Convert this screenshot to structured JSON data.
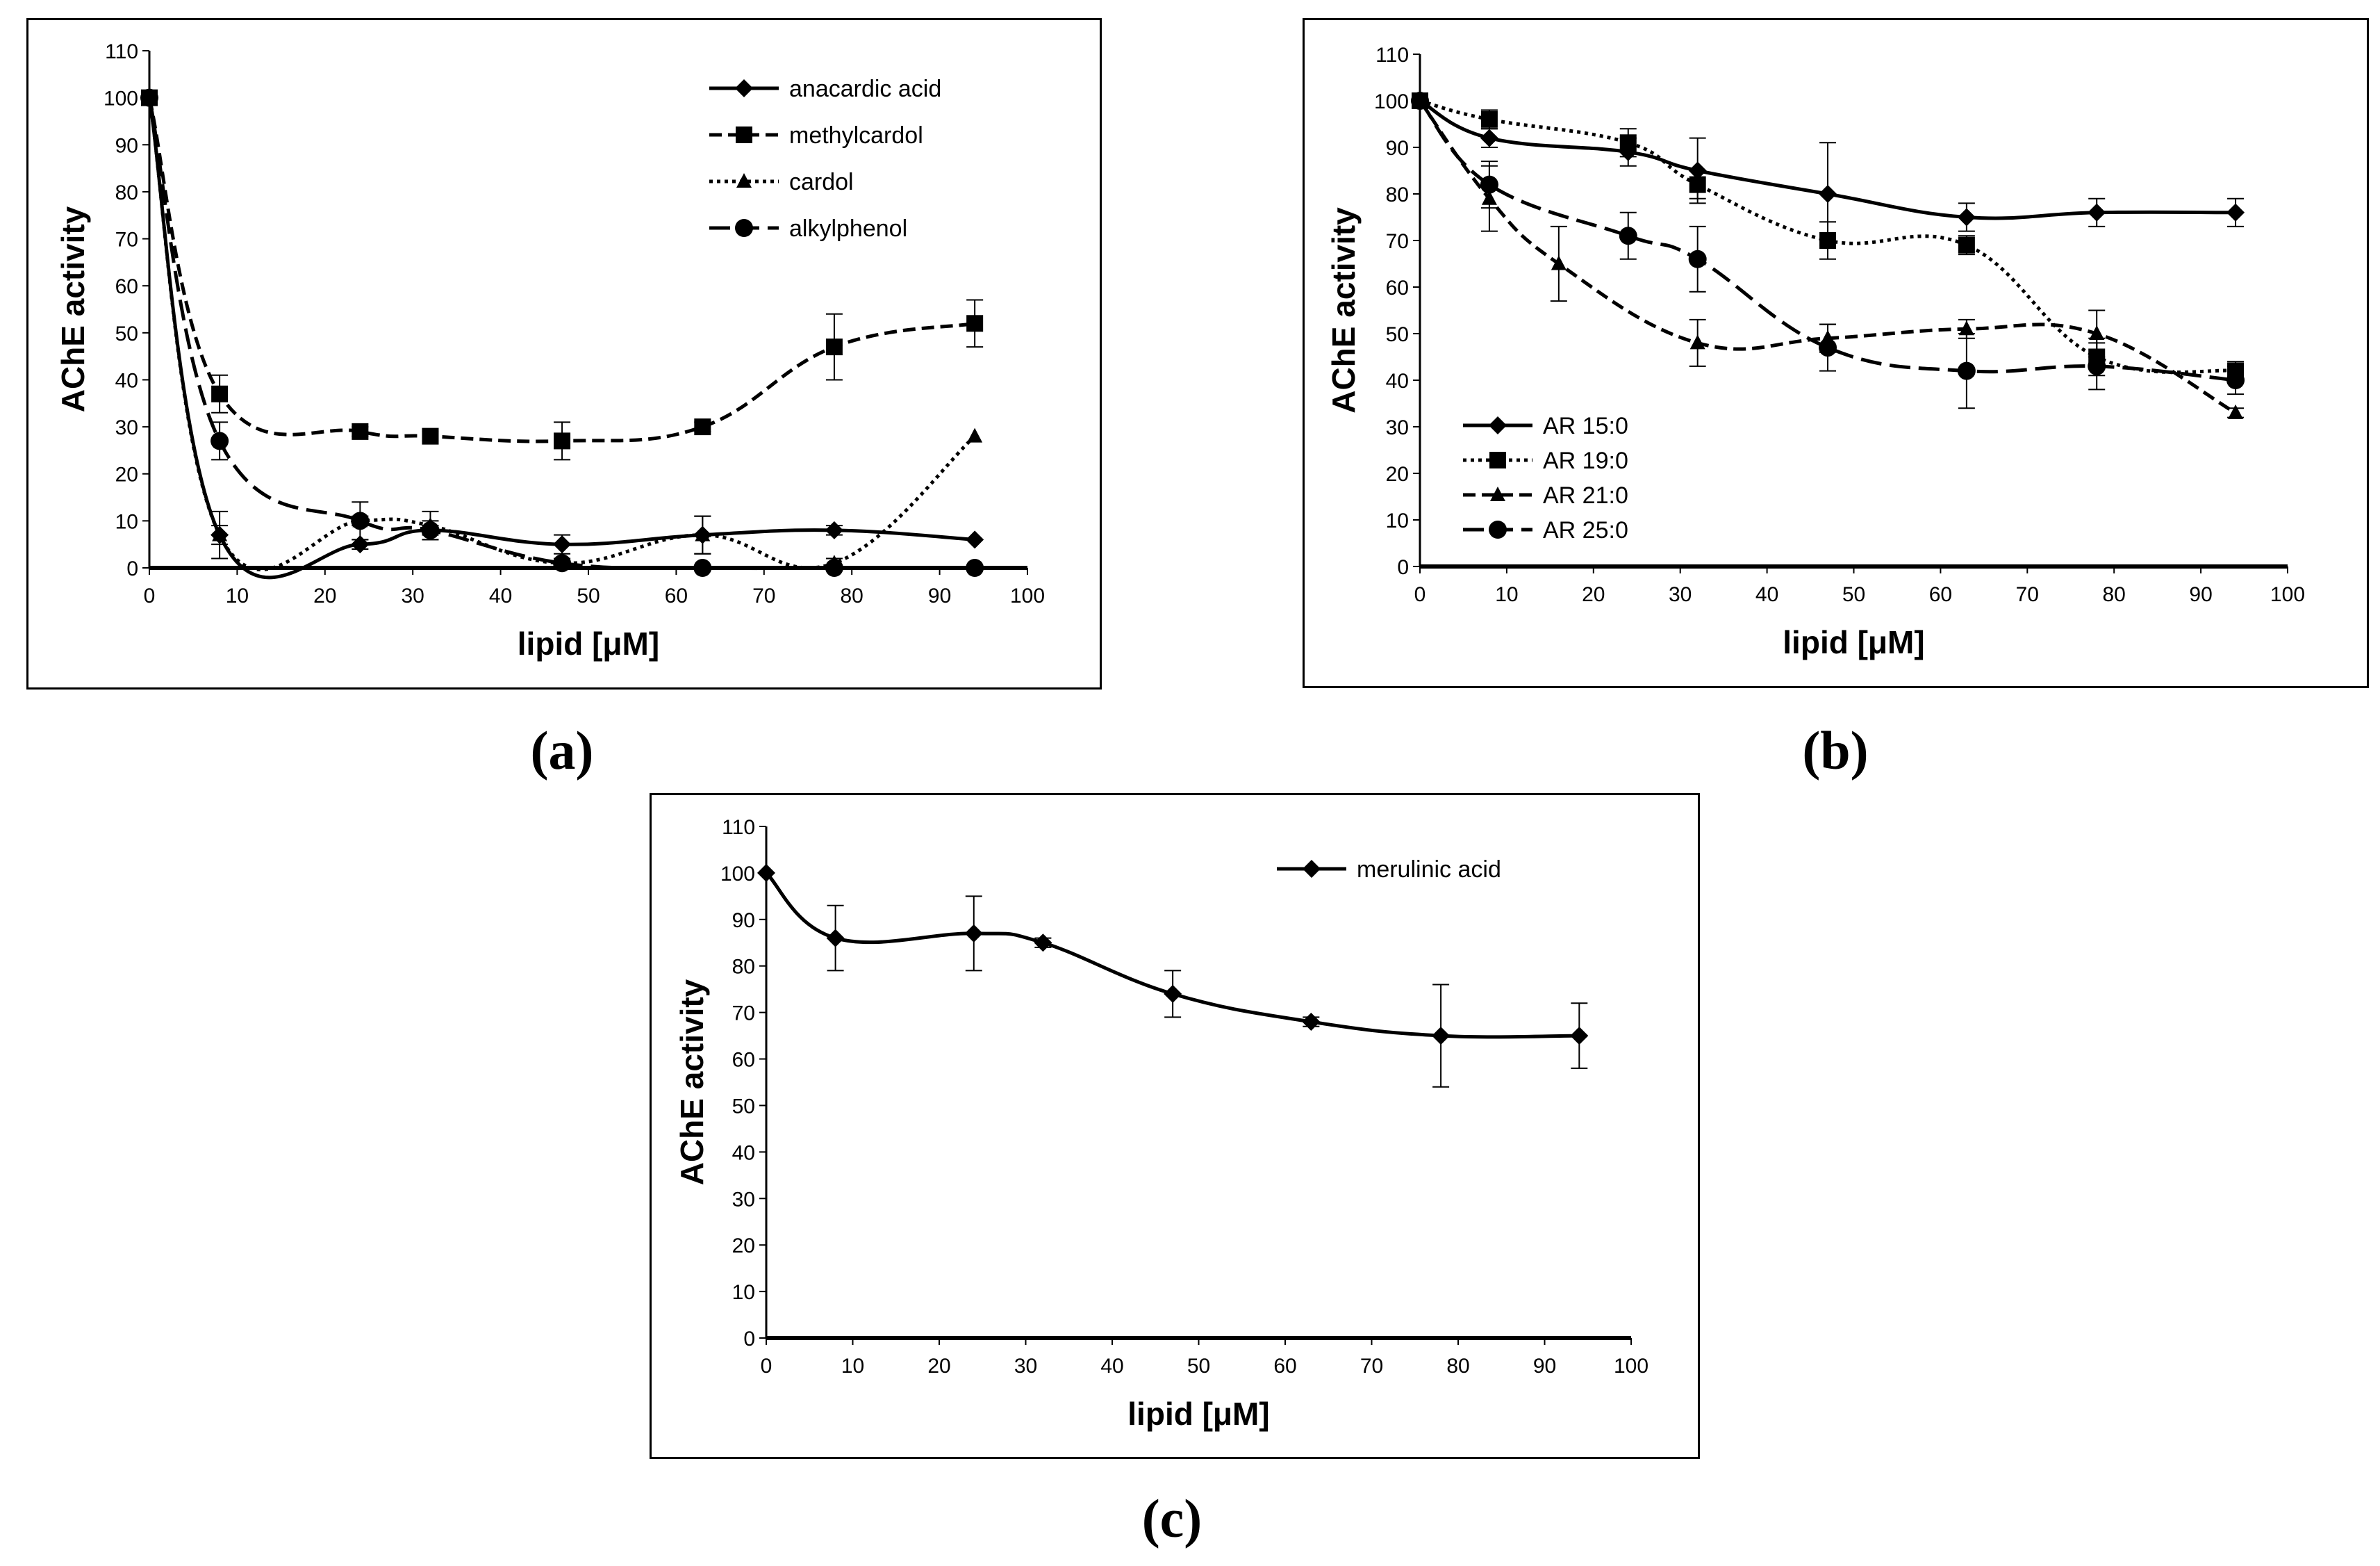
{
  "figure": {
    "captions": [
      "(a)",
      "(b)",
      "(c)"
    ]
  },
  "chart_data": [
    {
      "id": "a",
      "type": "line",
      "caption": "(a)",
      "xlabel": "lipid [μM]",
      "ylabel": "AChE activity",
      "xlim": [
        0,
        100
      ],
      "ylim": [
        0,
        110
      ],
      "xticks": [
        0,
        10,
        20,
        30,
        40,
        50,
        60,
        70,
        80,
        90,
        100
      ],
      "yticks": [
        0,
        10,
        20,
        30,
        40,
        50,
        60,
        70,
        80,
        90,
        100,
        110
      ],
      "legend_position": "top-right",
      "series": [
        {
          "name": "anacardic acid",
          "marker": "diamond",
          "dash": "solid",
          "x": [
            0,
            8,
            24,
            32,
            47,
            63,
            78,
            94
          ],
          "y": [
            100,
            7,
            5,
            8,
            5,
            7,
            8,
            6
          ],
          "err": [
            0,
            2,
            1,
            2,
            2,
            4,
            1,
            0
          ]
        },
        {
          "name": "methylcardol",
          "marker": "square",
          "dash": "dash",
          "x": [
            0,
            8,
            24,
            32,
            47,
            63,
            78,
            94
          ],
          "y": [
            100,
            37,
            29,
            28,
            27,
            30,
            47,
            52
          ],
          "err": [
            0,
            4,
            1,
            1,
            4,
            1,
            7,
            5
          ]
        },
        {
          "name": "cardol",
          "marker": "triangle",
          "dash": "dot",
          "x": [
            0,
            8,
            24,
            32,
            47,
            63,
            78,
            94
          ],
          "y": [
            100,
            7,
            10,
            9,
            1,
            7,
            1,
            28
          ],
          "err": [
            0,
            5,
            4,
            3,
            1,
            4,
            1,
            0
          ]
        },
        {
          "name": "alkylphenol",
          "marker": "circle",
          "dash": "longdash",
          "x": [
            0,
            8,
            24,
            32,
            47,
            63,
            78,
            94
          ],
          "y": [
            100,
            27,
            10,
            8,
            1,
            0,
            0,
            0
          ],
          "err": [
            0,
            4,
            1,
            1,
            0,
            0,
            0,
            0
          ]
        }
      ]
    },
    {
      "id": "b",
      "type": "line",
      "caption": "(b)",
      "xlabel": "lipid [μM]",
      "ylabel": "AChE activity",
      "xlim": [
        0,
        100
      ],
      "ylim": [
        0,
        110
      ],
      "xticks": [
        0,
        10,
        20,
        30,
        40,
        50,
        60,
        70,
        80,
        90,
        100
      ],
      "yticks": [
        0,
        10,
        20,
        30,
        40,
        50,
        60,
        70,
        80,
        90,
        100,
        110
      ],
      "legend_position": "bottom-left",
      "series": [
        {
          "name": "AR 15:0",
          "marker": "diamond",
          "dash": "solid",
          "x": [
            0,
            8,
            24,
            32,
            47,
            63,
            78,
            94
          ],
          "y": [
            100,
            92,
            89,
            85,
            80,
            75,
            76,
            76
          ],
          "err": [
            0,
            2,
            3,
            7,
            11,
            3,
            3,
            3
          ]
        },
        {
          "name": "AR 19:0",
          "marker": "square",
          "dash": "dot",
          "x": [
            0,
            8,
            24,
            32,
            47,
            63,
            78,
            94
          ],
          "y": [
            100,
            96,
            91,
            82,
            70,
            69,
            45,
            42
          ],
          "err": [
            0,
            2,
            3,
            3,
            4,
            2,
            4,
            2
          ]
        },
        {
          "name": "AR 21:0",
          "marker": "triangle",
          "dash": "dash",
          "x": [
            0,
            8,
            16,
            32,
            47,
            63,
            78,
            94
          ],
          "y": [
            100,
            79,
            65,
            48,
            49,
            51,
            50,
            33
          ],
          "err": [
            0,
            7,
            8,
            5,
            3,
            2,
            5,
            1
          ]
        },
        {
          "name": "AR 25:0",
          "marker": "circle",
          "dash": "longdash",
          "x": [
            0,
            8,
            24,
            32,
            47,
            63,
            78,
            94
          ],
          "y": [
            100,
            82,
            71,
            66,
            47,
            42,
            43,
            40
          ],
          "err": [
            0,
            5,
            5,
            7,
            5,
            8,
            5,
            3
          ]
        }
      ]
    },
    {
      "id": "c",
      "type": "line",
      "caption": "(c)",
      "xlabel": "lipid [μM]",
      "ylabel": "AChE activity",
      "xlim": [
        0,
        100
      ],
      "ylim": [
        0,
        110
      ],
      "xticks": [
        0,
        10,
        20,
        30,
        40,
        50,
        60,
        70,
        80,
        90,
        100
      ],
      "yticks": [
        0,
        10,
        20,
        30,
        40,
        50,
        60,
        70,
        80,
        90,
        100,
        110
      ],
      "legend_position": "top-right",
      "series": [
        {
          "name": "merulinic acid",
          "marker": "diamond",
          "dash": "solid",
          "x": [
            0,
            8,
            24,
            32,
            47,
            63,
            78,
            94
          ],
          "y": [
            100,
            86,
            87,
            85,
            74,
            68,
            65,
            65
          ],
          "err": [
            0,
            7,
            8,
            1,
            5,
            1,
            11,
            7
          ]
        }
      ]
    }
  ]
}
